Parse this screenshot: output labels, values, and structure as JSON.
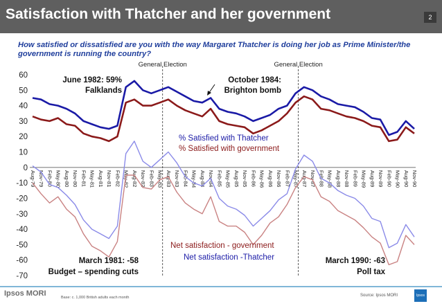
{
  "header": {
    "title": "Satisfaction with Thatcher and her government",
    "slide_number": "2",
    "question": "How satisfied or dissatisfied are you with the way Margaret Thatcher is doing her job as Prime Minister/the government is running the country?"
  },
  "footer": {
    "logo": "Ipsos MORI",
    "base_note": "Base: c. 1,000 British adults each month",
    "source": "Source: Ipsos MORI",
    "logo_badge": "Ipsos"
  },
  "colors": {
    "thatcher": "#1a1aa6",
    "government": "#8b1a1a",
    "net_government": "#c98282",
    "net_thatcher": "#8a8ae8",
    "axis_text": "#222222"
  },
  "chart_data": {
    "type": "line",
    "ylim": [
      -70,
      60
    ],
    "yticks": [
      60,
      50,
      40,
      30,
      20,
      10,
      0,
      -10,
      -20,
      -30,
      -40,
      -50,
      -60,
      -70
    ],
    "x_labels": [
      "Aug-79",
      "Nov-79",
      "Feb-80",
      "May-80",
      "Aug-80",
      "Nov-80",
      "Feb-81",
      "May-81",
      "Aug-81",
      "Nov-81",
      "Feb-82",
      "May-82",
      "Aug-82",
      "Nov-82",
      "Feb-83",
      "May-83",
      "Aug-83",
      "Nov-83",
      "Feb-84",
      "May-84",
      "Aug-84",
      "Nov-84",
      "Feb-85",
      "May-85",
      "Aug-85",
      "Nov-85",
      "Feb-86",
      "May-86",
      "Aug-86",
      "Nov-86",
      "Feb-87",
      "May-87",
      "Aug-87",
      "Nov-87",
      "Feb-88",
      "May-88",
      "Aug-88",
      "Nov-88",
      "Feb-89",
      "May-89",
      "Aug-89",
      "Nov-89",
      "Feb-90",
      "May-90",
      "Aug-90",
      "Nov-90"
    ],
    "series": [
      {
        "name": "% Satisfied with Thatcher",
        "key": "thatcher",
        "values": [
          45,
          44,
          41,
          40,
          38,
          35,
          30,
          28,
          26,
          25,
          27,
          52,
          56,
          50,
          48,
          50,
          52,
          49,
          46,
          43,
          42,
          45,
          38,
          36,
          35,
          33,
          30,
          32,
          34,
          38,
          40,
          48,
          52,
          50,
          46,
          44,
          41,
          40,
          39,
          36,
          32,
          31,
          21,
          23,
          30,
          25
        ]
      },
      {
        "name": "% Satisfied with government",
        "key": "government",
        "values": [
          33,
          31,
          30,
          32,
          28,
          27,
          22,
          20,
          19,
          17,
          20,
          42,
          44,
          40,
          40,
          42,
          44,
          40,
          37,
          35,
          33,
          38,
          30,
          28,
          27,
          26,
          22,
          24,
          27,
          30,
          35,
          42,
          46,
          44,
          38,
          37,
          35,
          33,
          32,
          30,
          27,
          26,
          17,
          18,
          26,
          22
        ]
      },
      {
        "name": "Net satisfaction - government",
        "key": "net_government",
        "values": [
          -10,
          -17,
          -23,
          -19,
          -27,
          -32,
          -43,
          -51,
          -54,
          -58,
          -48,
          -5,
          -5,
          -13,
          -14,
          -8,
          -6,
          -16,
          -23,
          -27,
          -30,
          -19,
          -35,
          -38,
          -38,
          -42,
          -50,
          -44,
          -36,
          -32,
          -24,
          -13,
          -6,
          -8,
          -19,
          -22,
          -28,
          -31,
          -34,
          -39,
          -45,
          -49,
          -63,
          -61,
          -44,
          -50
        ]
      },
      {
        "name": "Net satisfaction -Thatcher",
        "key": "net_thatcher",
        "values": [
          1,
          -3,
          -11,
          -13,
          -18,
          -24,
          -34,
          -40,
          -43,
          -46,
          -38,
          9,
          17,
          4,
          0,
          5,
          10,
          3,
          -6,
          -10,
          -12,
          -7,
          -20,
          -25,
          -27,
          -31,
          -38,
          -33,
          -28,
          -21,
          -17,
          -1,
          8,
          4,
          -7,
          -10,
          -15,
          -18,
          -20,
          -25,
          -33,
          -35,
          -52,
          -49,
          -37,
          -45
        ]
      }
    ],
    "legend_upper": [
      "% Satisfied with Thatcher",
      "% Satisfied with government"
    ],
    "legend_lower": [
      "Net satisfaction - government",
      "Net satisfaction -Thatcher"
    ],
    "election_labels": [
      "General Election",
      "General Election"
    ],
    "election_months": [
      "Jun-83",
      "Jun-87"
    ],
    "annotations": [
      {
        "line1": "June 1982: 59%",
        "line2": "Falklands"
      },
      {
        "line1": "October 1984:",
        "line2": "Brighton bomb"
      },
      {
        "line1": "March 1981: -58",
        "line2": "Budget – spending cuts"
      },
      {
        "line1": "March 1990: -63",
        "line2": "Poll tax"
      }
    ]
  }
}
